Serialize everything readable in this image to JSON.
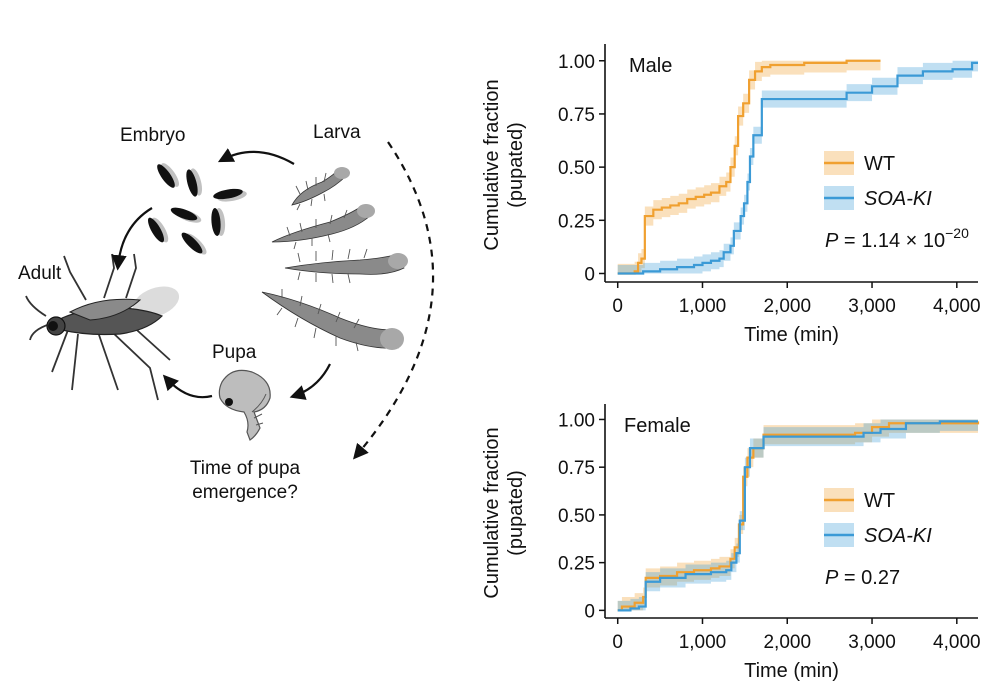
{
  "diagram": {
    "labels": {
      "embryo": "Embryo",
      "larva": "Larva",
      "adult": "Adult",
      "pupa": "Pupa",
      "question_line1": "Time of pupa",
      "question_line2": "emergence?"
    }
  },
  "chart_data": [
    {
      "type": "line",
      "panel_label": "Male",
      "xlabel": "Time (min)",
      "ylabel_line1": "Cumulative fraction",
      "ylabel_line2": "(pupated)",
      "xlim": [
        -150,
        4250
      ],
      "ylim": [
        -0.04,
        1.06
      ],
      "x_ticks": [
        0,
        1000,
        2000,
        3000,
        4000
      ],
      "x_tick_labels": [
        "0",
        "1,000",
        "2,000",
        "3,000",
        "4,000"
      ],
      "y_ticks": [
        0,
        0.25,
        0.5,
        0.75,
        1.0
      ],
      "y_tick_labels": [
        "0",
        "0.25",
        "0.50",
        "0.75",
        "1.00"
      ],
      "annotation": {
        "prefix": "P",
        "text": " = 1.14 × 10",
        "superscript": "−20"
      },
      "legend_position": "right",
      "series": [
        {
          "name": "WT",
          "color": "#f0a030",
          "steps": [
            [
              0,
              0
            ],
            [
              200,
              0.01
            ],
            [
              240,
              0.05
            ],
            [
              280,
              0.07
            ],
            [
              320,
              0.27
            ],
            [
              420,
              0.3
            ],
            [
              520,
              0.31
            ],
            [
              620,
              0.32
            ],
            [
              720,
              0.33
            ],
            [
              820,
              0.35
            ],
            [
              920,
              0.36
            ],
            [
              1020,
              0.37
            ],
            [
              1100,
              0.38
            ],
            [
              1200,
              0.41
            ],
            [
              1280,
              0.43
            ],
            [
              1330,
              0.5
            ],
            [
              1380,
              0.6
            ],
            [
              1420,
              0.74
            ],
            [
              1480,
              0.8
            ],
            [
              1550,
              0.91
            ],
            [
              1620,
              0.95
            ],
            [
              1700,
              0.97
            ],
            [
              1800,
              0.98
            ],
            [
              2200,
              0.99
            ],
            [
              2700,
              1.0
            ],
            [
              3100,
              1.0
            ]
          ],
          "band_halfwidth": 0.045
        },
        {
          "name": "SOA-KI",
          "color": "#3b9ad6",
          "steps": [
            [
              0,
              0
            ],
            [
              300,
              0.01
            ],
            [
              500,
              0.02
            ],
            [
              700,
              0.03
            ],
            [
              900,
              0.04
            ],
            [
              1000,
              0.05
            ],
            [
              1100,
              0.06
            ],
            [
              1200,
              0.07
            ],
            [
              1250,
              0.1
            ],
            [
              1330,
              0.13
            ],
            [
              1370,
              0.2
            ],
            [
              1450,
              0.27
            ],
            [
              1490,
              0.33
            ],
            [
              1530,
              0.43
            ],
            [
              1560,
              0.55
            ],
            [
              1600,
              0.65
            ],
            [
              1700,
              0.82
            ],
            [
              2000,
              0.82
            ],
            [
              2600,
              0.82
            ],
            [
              2700,
              0.85
            ],
            [
              3000,
              0.88
            ],
            [
              3300,
              0.93
            ],
            [
              3600,
              0.95
            ],
            [
              3950,
              0.96
            ],
            [
              4180,
              0.99
            ],
            [
              4250,
              0.99
            ]
          ],
          "band_halfwidth": 0.04
        }
      ]
    },
    {
      "type": "line",
      "panel_label": "Female",
      "xlabel": "Time (min)",
      "ylabel_line1": "Cumulative fraction",
      "ylabel_line2": "(pupated)",
      "xlim": [
        -150,
        4250
      ],
      "ylim": [
        -0.04,
        1.06
      ],
      "x_ticks": [
        0,
        1000,
        2000,
        3000,
        4000
      ],
      "x_tick_labels": [
        "0",
        "1,000",
        "2,000",
        "3,000",
        "4,000"
      ],
      "y_ticks": [
        0,
        0.25,
        0.5,
        0.75,
        1.0
      ],
      "y_tick_labels": [
        "0",
        "0.25",
        "0.50",
        "0.75",
        "1.00"
      ],
      "annotation": {
        "prefix": "P",
        "text": " = 0.27",
        "superscript": ""
      },
      "legend_position": "right",
      "series": [
        {
          "name": "WT",
          "color": "#f0a030",
          "steps": [
            [
              0,
              0
            ],
            [
              50,
              0.02
            ],
            [
              200,
              0.04
            ],
            [
              300,
              0.07
            ],
            [
              330,
              0.17
            ],
            [
              500,
              0.18
            ],
            [
              700,
              0.2
            ],
            [
              900,
              0.21
            ],
            [
              1100,
              0.22
            ],
            [
              1200,
              0.23
            ],
            [
              1330,
              0.27
            ],
            [
              1380,
              0.33
            ],
            [
              1430,
              0.45
            ],
            [
              1480,
              0.7
            ],
            [
              1530,
              0.8
            ],
            [
              1600,
              0.85
            ],
            [
              1720,
              0.92
            ],
            [
              2000,
              0.92
            ],
            [
              2600,
              0.92
            ],
            [
              2800,
              0.93
            ],
            [
              3000,
              0.96
            ],
            [
              3200,
              0.98
            ],
            [
              3800,
              0.98
            ],
            [
              4250,
              0.99
            ]
          ],
          "band_halfwidth": 0.05
        },
        {
          "name": "SOA-KI",
          "color": "#3b9ad6",
          "steps": [
            [
              0,
              0
            ],
            [
              150,
              0.01
            ],
            [
              250,
              0.02
            ],
            [
              330,
              0.15
            ],
            [
              500,
              0.17
            ],
            [
              800,
              0.19
            ],
            [
              1100,
              0.2
            ],
            [
              1280,
              0.21
            ],
            [
              1340,
              0.25
            ],
            [
              1400,
              0.3
            ],
            [
              1440,
              0.47
            ],
            [
              1500,
              0.75
            ],
            [
              1560,
              0.85
            ],
            [
              1720,
              0.91
            ],
            [
              2000,
              0.91
            ],
            [
              2700,
              0.91
            ],
            [
              2900,
              0.93
            ],
            [
              3100,
              0.95
            ],
            [
              3400,
              0.98
            ],
            [
              3800,
              0.99
            ],
            [
              4250,
              0.99
            ]
          ],
          "band_halfwidth": 0.05
        }
      ]
    }
  ]
}
